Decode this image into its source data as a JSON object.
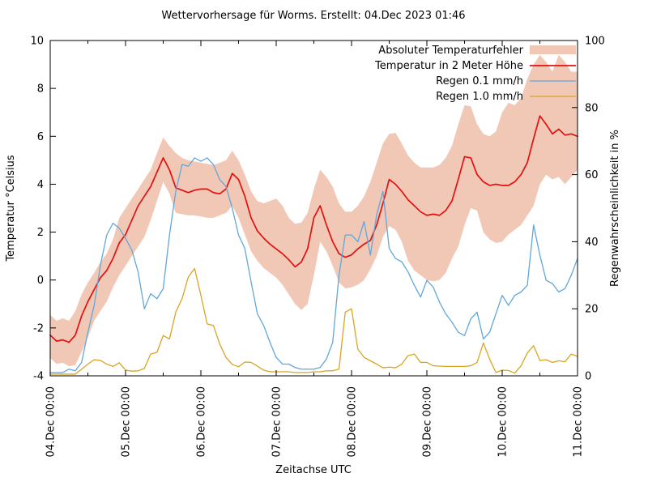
{
  "title": "Wettervorhersage für Worms. Erstellt: 04.Dec 2023 01:46",
  "axes": {
    "x": {
      "label": "Zeitachse UTC",
      "tick_labels": [
        "04.Dec 00:00",
        "05.Dec 00:00",
        "06.Dec 00:00",
        "07.Dec 00:00",
        "08.Dec 00:00",
        "09.Dec 00:00",
        "10.Dec 00:00",
        "11.Dec 00:00"
      ]
    },
    "y_left": {
      "label": "Temperatur °Celsius",
      "min": -4,
      "max": 10,
      "ticks": [
        -4,
        -2,
        0,
        2,
        4,
        6,
        8,
        10
      ]
    },
    "y_right": {
      "label": "Regenwahrscheinlichkeit in %",
      "min": 0,
      "max": 100,
      "ticks": [
        0,
        20,
        40,
        60,
        80,
        100
      ]
    }
  },
  "legend": {
    "items": [
      {
        "label": "Absoluter Temperaturfehler",
        "swatch": "band"
      },
      {
        "label": "Temperatur in 2 Meter Höhe",
        "swatch": "line-red"
      },
      {
        "label": "Regen 0.1 mm/h",
        "swatch": "line-blue"
      },
      {
        "label": "Regen 1.0 mm/h",
        "swatch": "line-orange"
      }
    ]
  },
  "colors": {
    "band": "#f0c8b5",
    "temperature": "#e31010",
    "rain01": "#61a7da",
    "rain10": "#d9a520",
    "axis": "#000000",
    "background": "#ffffff"
  },
  "chart_data": {
    "type": "line",
    "x_unit": "hours since 04.Dec 00:00 UTC",
    "x_range": [
      0,
      168
    ],
    "x_step": 2,
    "y_left_range": [
      -4,
      10
    ],
    "y_right_range": [
      0,
      100
    ],
    "grid": false,
    "legend_position": "top-right-inside",
    "x": [
      0,
      2,
      4,
      6,
      8,
      10,
      12,
      14,
      16,
      18,
      20,
      22,
      24,
      26,
      28,
      30,
      32,
      34,
      36,
      38,
      40,
      42,
      44,
      46,
      48,
      50,
      52,
      54,
      56,
      58,
      60,
      62,
      64,
      66,
      68,
      70,
      72,
      74,
      76,
      78,
      80,
      82,
      84,
      86,
      88,
      90,
      92,
      94,
      96,
      98,
      100,
      102,
      104,
      106,
      108,
      110,
      112,
      114,
      116,
      118,
      120,
      122,
      124,
      126,
      128,
      130,
      132,
      134,
      136,
      138,
      140,
      142,
      144,
      146,
      148,
      150,
      152,
      154,
      156,
      158,
      160,
      162,
      164,
      166,
      168
    ],
    "series": [
      {
        "name": "Absoluter Temperaturfehler",
        "kind": "band",
        "axis": "left",
        "upper": [
          -1.45,
          -1.7,
          -1.6,
          -1.7,
          -1.3,
          -0.6,
          -0.1,
          0.3,
          0.75,
          1.1,
          1.7,
          2.6,
          3.0,
          3.4,
          3.8,
          4.2,
          4.6,
          5.3,
          5.95,
          5.6,
          5.3,
          5.1,
          5.0,
          4.95,
          4.9,
          4.85,
          4.8,
          4.9,
          5.0,
          5.4,
          5.0,
          4.4,
          3.7,
          3.3,
          3.2,
          3.3,
          3.4,
          3.1,
          2.6,
          2.35,
          2.4,
          2.8,
          3.8,
          4.6,
          4.3,
          3.9,
          3.2,
          2.85,
          2.85,
          3.1,
          3.5,
          4.1,
          4.9,
          5.7,
          6.1,
          6.15,
          5.7,
          5.2,
          4.9,
          4.7,
          4.7,
          4.7,
          4.8,
          5.1,
          5.6,
          6.5,
          7.3,
          7.25,
          6.5,
          6.1,
          6.0,
          6.2,
          7.0,
          7.4,
          7.3,
          7.6,
          8.4,
          9.0,
          9.4,
          9.1,
          8.7,
          9.4,
          9.1,
          8.7,
          8.7
        ],
        "lower": [
          -3.25,
          -3.5,
          -3.45,
          -3.6,
          -3.55,
          -3.0,
          -2.4,
          -1.7,
          -1.3,
          -0.9,
          -0.3,
          0.2,
          0.6,
          1.0,
          1.4,
          1.8,
          2.5,
          3.3,
          4.1,
          3.6,
          2.8,
          2.75,
          2.7,
          2.7,
          2.65,
          2.6,
          2.6,
          2.7,
          2.8,
          3.1,
          2.6,
          1.9,
          1.2,
          0.8,
          0.5,
          0.3,
          0.1,
          -0.2,
          -0.6,
          -1.0,
          -1.25,
          -1.0,
          0.2,
          1.6,
          1.2,
          0.6,
          -0.1,
          -0.35,
          -0.3,
          -0.2,
          0.0,
          0.45,
          1.0,
          1.8,
          2.25,
          2.1,
          1.6,
          0.8,
          0.4,
          0.2,
          0.0,
          -0.05,
          0.0,
          0.3,
          0.9,
          1.4,
          2.3,
          3.0,
          2.9,
          2.0,
          1.7,
          1.55,
          1.6,
          1.9,
          2.1,
          2.3,
          2.7,
          3.1,
          4.0,
          4.4,
          4.2,
          4.3,
          4.0,
          4.3,
          4.6
        ]
      },
      {
        "name": "Temperatur in 2 Meter Höhe",
        "kind": "line",
        "axis": "left",
        "values": [
          -2.3,
          -2.55,
          -2.5,
          -2.6,
          -2.3,
          -1.5,
          -0.9,
          -0.4,
          0.1,
          0.4,
          0.9,
          1.55,
          1.9,
          2.5,
          3.1,
          3.5,
          3.9,
          4.5,
          5.1,
          4.6,
          3.85,
          3.75,
          3.65,
          3.75,
          3.8,
          3.8,
          3.65,
          3.6,
          3.8,
          4.45,
          4.2,
          3.5,
          2.6,
          2.05,
          1.75,
          1.5,
          1.3,
          1.1,
          0.85,
          0.55,
          0.75,
          1.3,
          2.6,
          3.1,
          2.3,
          1.6,
          1.1,
          0.95,
          1.05,
          1.3,
          1.5,
          1.65,
          2.3,
          3.2,
          4.2,
          4.0,
          3.7,
          3.35,
          3.1,
          2.85,
          2.7,
          2.75,
          2.7,
          2.9,
          3.3,
          4.2,
          5.15,
          5.1,
          4.4,
          4.1,
          3.95,
          4.0,
          3.95,
          3.95,
          4.1,
          4.4,
          4.9,
          5.9,
          6.85,
          6.5,
          6.1,
          6.3,
          6.05,
          6.1,
          6.0
        ]
      },
      {
        "name": "Regen 0.1 mm/h",
        "kind": "line",
        "axis": "right",
        "values": [
          1,
          1,
          1,
          2,
          1.5,
          4,
          13,
          21,
          33,
          42,
          45.5,
          44,
          41,
          37.5,
          31,
          20,
          24.5,
          23,
          26,
          42,
          55,
          63,
          62.5,
          65,
          64,
          65,
          63,
          58.5,
          56.5,
          50,
          42,
          38,
          28,
          18.5,
          15,
          10,
          5.5,
          3.5,
          3.5,
          2.5,
          2,
          2,
          2,
          2.5,
          5,
          10,
          30,
          42,
          42,
          40,
          46,
          36,
          48,
          55,
          38,
          35,
          34,
          31,
          27,
          23.5,
          28.5,
          26.5,
          22,
          18.5,
          16,
          13,
          12,
          17,
          19,
          11,
          13,
          18.5,
          24,
          21,
          24,
          25,
          27,
          45,
          36,
          28.5,
          27.5,
          25,
          26,
          30,
          35
        ]
      },
      {
        "name": "Regen 1.0 mm/h",
        "kind": "line",
        "axis": "right",
        "values": [
          0.5,
          0.5,
          0.5,
          0.5,
          0.5,
          2,
          3.5,
          4.8,
          4.6,
          3.5,
          2.8,
          3.9,
          1.7,
          1.4,
          1.5,
          2.2,
          6.5,
          7,
          12,
          11,
          19,
          23,
          29.5,
          32,
          24,
          15.5,
          15,
          9.5,
          5.5,
          3.4,
          2.7,
          4.1,
          4,
          2.9,
          1.7,
          1.2,
          1.2,
          1.2,
          1.2,
          1,
          1,
          1,
          1.2,
          1.2,
          1.5,
          1.5,
          2,
          19,
          20,
          8,
          5.5,
          4.5,
          3.5,
          2.4,
          2.6,
          2.4,
          3.5,
          6,
          6.5,
          4,
          4,
          3,
          2.9,
          2.8,
          2.8,
          2.8,
          2.8,
          3,
          4,
          9.8,
          5,
          1,
          1.7,
          1.6,
          0.8,
          3,
          6.8,
          9,
          4.6,
          4.8,
          4,
          4.5,
          4.2,
          6.5,
          5.8
        ]
      }
    ]
  }
}
